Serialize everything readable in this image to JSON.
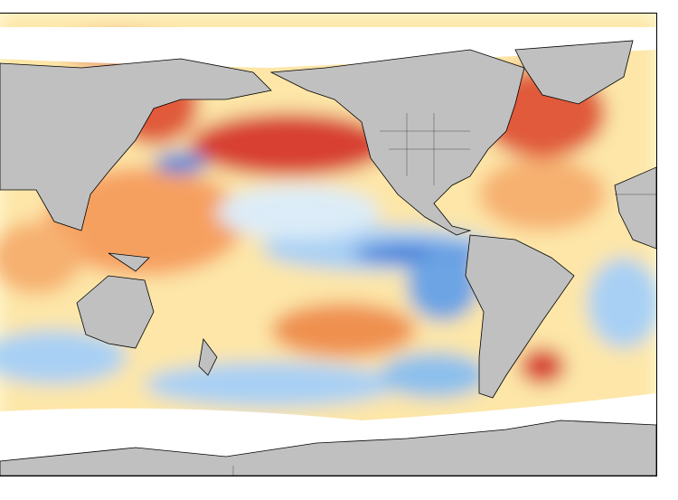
{
  "map": {
    "type": "sea-surface-temperature-anomaly",
    "colors": {
      "land": "#c0c0c0",
      "ice": "#ffffff",
      "neutral": "#fffbd8",
      "warm_light": "#fdd08a",
      "warm": "#f08040",
      "warm_strong": "#d02a20",
      "cool_light": "#d8ecfa",
      "cool": "#8cc0ec",
      "cool_strong": "#2a6cd0",
      "coastline": "#000000"
    }
  }
}
